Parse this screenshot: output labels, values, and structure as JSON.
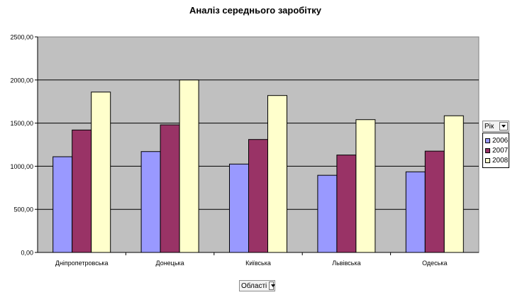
{
  "chart_data": {
    "type": "bar",
    "title": "Аналіз середнього заробітку",
    "xlabel": "",
    "ylabel": "",
    "ylim": [
      0,
      2500
    ],
    "yticks": [
      "0,00",
      "500,00",
      "1000,00",
      "1500,00",
      "2000,00",
      "2500,00"
    ],
    "grid": true,
    "legend_position": "right",
    "plot_background": "#c0c0c0",
    "categories": [
      "Дніпропетровська",
      "Донецька",
      "Київська",
      "Львівська",
      "Одеська"
    ],
    "series": [
      {
        "name": "2006",
        "color": "#9999ff",
        "values": [
          1110,
          1170,
          1025,
          895,
          935
        ]
      },
      {
        "name": "2007",
        "color": "#993366",
        "values": [
          1420,
          1480,
          1310,
          1130,
          1175
        ]
      },
      {
        "name": "2008",
        "color": "#ffffcc",
        "values": [
          1860,
          2000,
          1820,
          1540,
          1585
        ]
      }
    ]
  },
  "pivot": {
    "series_field": "Рік",
    "category_field": "Області"
  }
}
